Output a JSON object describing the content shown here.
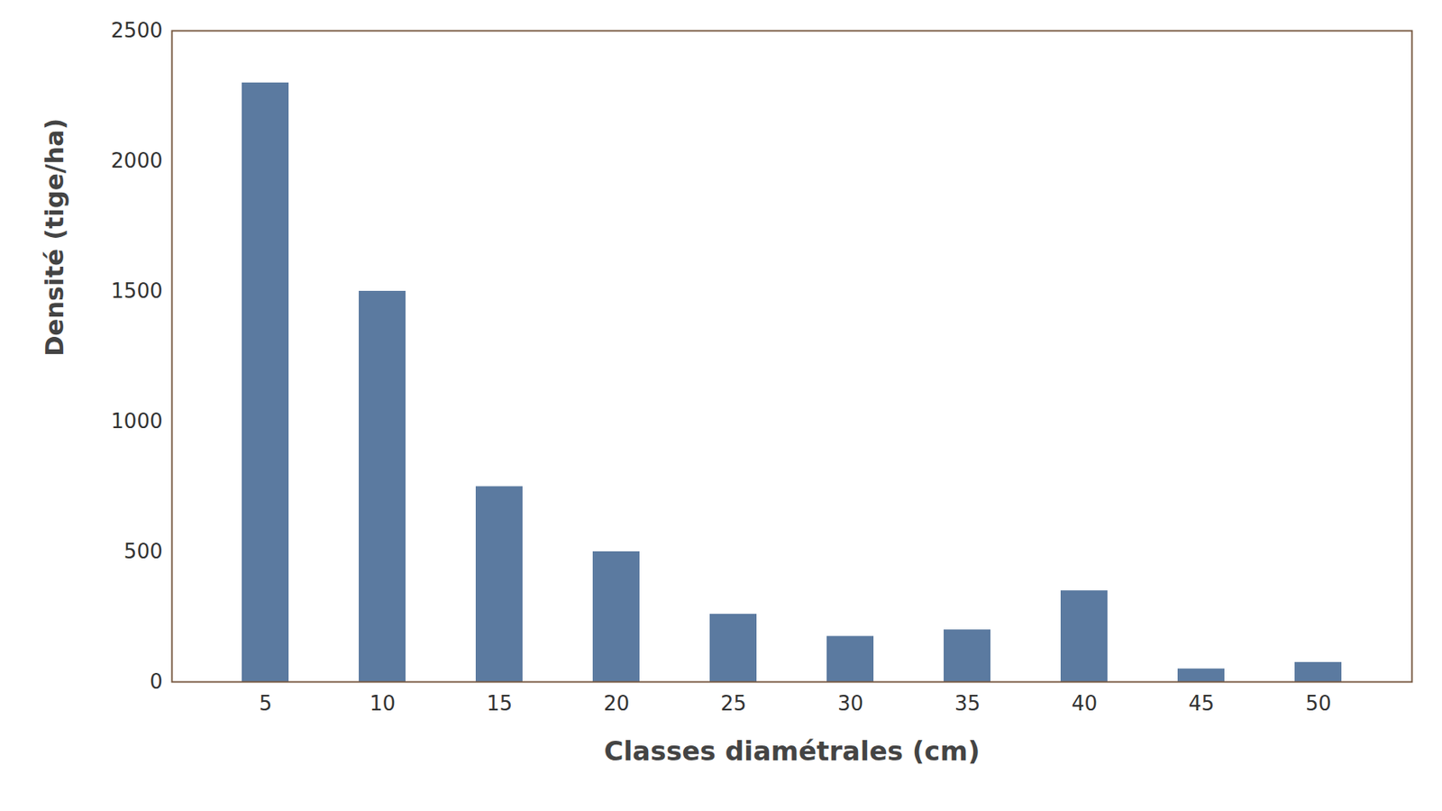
{
  "chart_data": {
    "type": "bar",
    "x_label": "Classes diamétrales (cm)",
    "y_label": "Densité (tige/ha)",
    "categories": [
      "5",
      "10",
      "15",
      "20",
      "25",
      "30",
      "35",
      "40",
      "45",
      "50"
    ],
    "values": [
      2300,
      1500,
      750,
      500,
      260,
      175,
      200,
      350,
      50,
      75
    ],
    "color": "#5b7aa0",
    "ylim": [
      0,
      2500
    ],
    "yticks": [
      0,
      500,
      1000,
      1500,
      2000,
      2500
    ]
  }
}
